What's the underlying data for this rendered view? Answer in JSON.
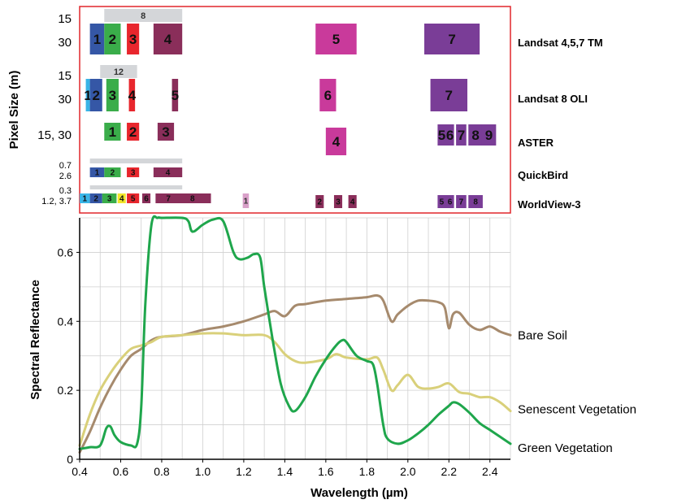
{
  "top_panel": {
    "ylabel": "Pixel Size (m)",
    "border_color": "#e0262b",
    "sensors": [
      {
        "name": "Landsat 4,5,7 TM",
        "pixel_labels": [
          "15",
          "30"
        ],
        "bands": [
          {
            "label": "8",
            "from": 0.52,
            "to": 0.9,
            "tier": "pan",
            "color": "#d4d6d9"
          },
          {
            "label": "1",
            "from": 0.45,
            "to": 0.52,
            "tier": "ms",
            "color": "#3557a6"
          },
          {
            "label": "2",
            "from": 0.52,
            "to": 0.6,
            "tier": "ms",
            "color": "#3aad4a"
          },
          {
            "label": "3",
            "from": 0.63,
            "to": 0.69,
            "tier": "ms",
            "color": "#e8262d"
          },
          {
            "label": "4",
            "from": 0.76,
            "to": 0.9,
            "tier": "ms",
            "color": "#8a2e5a"
          },
          {
            "label": "5",
            "from": 1.55,
            "to": 1.75,
            "tier": "ms",
            "color": "#c93a9b"
          },
          {
            "label": "7",
            "from": 2.08,
            "to": 2.35,
            "tier": "ms",
            "color": "#7a3d97"
          }
        ]
      },
      {
        "name": "Landsat 8 OLI",
        "pixel_labels": [
          "15",
          "30"
        ],
        "bands": [
          {
            "label": "12",
            "from": 0.5,
            "to": 0.68,
            "tier": "pan",
            "color": "#d4d6d9"
          },
          {
            "label": "1",
            "from": 0.43,
            "to": 0.45,
            "tier": "ms",
            "color": "#39b4e6"
          },
          {
            "label": "2",
            "from": 0.45,
            "to": 0.51,
            "tier": "ms",
            "color": "#3557a6"
          },
          {
            "label": "3",
            "from": 0.53,
            "to": 0.59,
            "tier": "ms",
            "color": "#3aad4a"
          },
          {
            "label": "4",
            "from": 0.64,
            "to": 0.67,
            "tier": "ms",
            "color": "#e8262d"
          },
          {
            "label": "5",
            "from": 0.85,
            "to": 0.88,
            "tier": "ms",
            "color": "#8a2e5a"
          },
          {
            "label": "6",
            "from": 1.57,
            "to": 1.65,
            "tier": "ms",
            "color": "#c93a9b"
          },
          {
            "label": "7",
            "from": 2.11,
            "to": 2.29,
            "tier": "ms",
            "color": "#7a3d97"
          }
        ]
      },
      {
        "name": "ASTER",
        "pixel_labels": [
          "15, 30"
        ],
        "bands": [
          {
            "label": "1",
            "from": 0.52,
            "to": 0.6,
            "tier": "ms",
            "color": "#3aad4a"
          },
          {
            "label": "2",
            "from": 0.63,
            "to": 0.69,
            "tier": "ms",
            "color": "#e8262d"
          },
          {
            "label": "3",
            "from": 0.78,
            "to": 0.86,
            "tier": "ms",
            "color": "#8a2e5a"
          },
          {
            "label": "4",
            "from": 1.6,
            "to": 1.7,
            "tier": "ms",
            "color": "#c93a9b"
          },
          {
            "label": "5",
            "from": 2.145,
            "to": 2.185,
            "tier": "ms",
            "color": "#7a3d97"
          },
          {
            "label": "6",
            "from": 2.185,
            "to": 2.225,
            "tier": "ms",
            "color": "#7a3d97"
          },
          {
            "label": "7",
            "from": 2.235,
            "to": 2.285,
            "tier": "ms",
            "color": "#7a3d97"
          },
          {
            "label": "8",
            "from": 2.295,
            "to": 2.365,
            "tier": "ms",
            "color": "#7a3d97"
          },
          {
            "label": "9",
            "from": 2.36,
            "to": 2.43,
            "tier": "ms",
            "color": "#7a3d97"
          }
        ]
      },
      {
        "name": "QuickBird",
        "pixel_labels": [
          "0.7",
          "2.6"
        ],
        "bands": [
          {
            "label": "",
            "from": 0.45,
            "to": 0.9,
            "tier": "pan",
            "color": "#d4d6d9"
          },
          {
            "label": "1",
            "from": 0.45,
            "to": 0.52,
            "tier": "ms",
            "color": "#3557a6"
          },
          {
            "label": "2",
            "from": 0.52,
            "to": 0.6,
            "tier": "ms",
            "color": "#3aad4a"
          },
          {
            "label": "3",
            "from": 0.63,
            "to": 0.69,
            "tier": "ms",
            "color": "#e8262d"
          },
          {
            "label": "4",
            "from": 0.76,
            "to": 0.9,
            "tier": "ms",
            "color": "#8a2e5a"
          }
        ]
      },
      {
        "name": "WorldView-3",
        "pixel_labels": [
          "0.3",
          "1.2, 3.7"
        ],
        "bands": [
          {
            "label": "",
            "from": 0.45,
            "to": 0.9,
            "tier": "pan",
            "color": "#d4d6d9"
          },
          {
            "label": "1",
            "from": 0.4,
            "to": 0.45,
            "tier": "ms",
            "color": "#39b4e6"
          },
          {
            "label": "2",
            "from": 0.45,
            "to": 0.51,
            "tier": "ms",
            "color": "#3557a6"
          },
          {
            "label": "3",
            "from": 0.51,
            "to": 0.58,
            "tier": "ms",
            "color": "#3aad4a"
          },
          {
            "label": "4",
            "from": 0.585,
            "to": 0.625,
            "tier": "ms",
            "color": "#f2e52a"
          },
          {
            "label": "5",
            "from": 0.63,
            "to": 0.69,
            "tier": "ms",
            "color": "#e8262d"
          },
          {
            "label": "6",
            "from": 0.705,
            "to": 0.745,
            "tier": "ms",
            "color": "#8a2e5a"
          },
          {
            "label": "7",
            "from": 0.77,
            "to": 0.895,
            "tier": "ms",
            "color": "#8a2e5a"
          },
          {
            "label": "8",
            "from": 0.86,
            "to": 1.04,
            "tier": "ms",
            "color": "#8a2e5a"
          },
          {
            "label": "1",
            "from": 1.195,
            "to": 1.225,
            "tier": "ms",
            "color": "#d9a0c9"
          },
          {
            "label": "2",
            "from": 1.55,
            "to": 1.59,
            "tier": "ms",
            "color": "#8a2e5a"
          },
          {
            "label": "3",
            "from": 1.64,
            "to": 1.68,
            "tier": "ms",
            "color": "#8a2e5a"
          },
          {
            "label": "4",
            "from": 1.71,
            "to": 1.75,
            "tier": "ms",
            "color": "#8a2e5a"
          },
          {
            "label": "5",
            "from": 2.145,
            "to": 2.185,
            "tier": "ms",
            "color": "#7a3d97"
          },
          {
            "label": "6",
            "from": 2.185,
            "to": 2.225,
            "tier": "ms",
            "color": "#7a3d97"
          },
          {
            "label": "7",
            "from": 2.235,
            "to": 2.285,
            "tier": "ms",
            "color": "#7a3d97"
          },
          {
            "label": "8",
            "from": 2.295,
            "to": 2.365,
            "tier": "ms",
            "color": "#7a3d97"
          }
        ]
      }
    ]
  },
  "chart_data": {
    "type": "line",
    "title": "",
    "xlabel": "Wavelength (µm)",
    "ylabel": "Spectral Reflectance",
    "xlim": [
      0.4,
      2.5
    ],
    "ylim": [
      0,
      0.7
    ],
    "xticks": [
      "0.4",
      "0.6",
      "0.8",
      "1.0",
      "1.2",
      "1.4",
      "1.6",
      "1.8",
      "2.0",
      "2.2",
      "2.4"
    ],
    "yticks": [
      "0",
      "0.2",
      "0.4",
      "0.6"
    ],
    "grid": true,
    "series": [
      {
        "name": "Bare Soil",
        "color": "#a68a6d",
        "x": [
          0.4,
          0.45,
          0.5,
          0.55,
          0.6,
          0.65,
          0.7,
          0.75,
          0.8,
          0.9,
          1.0,
          1.1,
          1.2,
          1.3,
          1.35,
          1.4,
          1.45,
          1.5,
          1.6,
          1.7,
          1.8,
          1.85,
          1.88,
          1.92,
          1.95,
          2.0,
          2.05,
          2.1,
          2.15,
          2.18,
          2.2,
          2.22,
          2.25,
          2.3,
          2.35,
          2.4,
          2.45,
          2.5
        ],
        "y": [
          0.02,
          0.08,
          0.15,
          0.21,
          0.26,
          0.3,
          0.32,
          0.345,
          0.355,
          0.36,
          0.375,
          0.385,
          0.4,
          0.42,
          0.43,
          0.415,
          0.445,
          0.45,
          0.46,
          0.465,
          0.47,
          0.475,
          0.46,
          0.4,
          0.42,
          0.445,
          0.46,
          0.46,
          0.455,
          0.44,
          0.38,
          0.42,
          0.425,
          0.39,
          0.375,
          0.385,
          0.37,
          0.36
        ]
      },
      {
        "name": "Senescent Vegetation",
        "color": "#d9d07a",
        "x": [
          0.4,
          0.45,
          0.5,
          0.55,
          0.6,
          0.65,
          0.7,
          0.75,
          0.8,
          0.9,
          1.0,
          1.1,
          1.2,
          1.3,
          1.35,
          1.4,
          1.45,
          1.5,
          1.6,
          1.65,
          1.7,
          1.8,
          1.85,
          1.88,
          1.92,
          1.95,
          2.0,
          2.05,
          2.1,
          2.15,
          2.2,
          2.25,
          2.3,
          2.35,
          2.4,
          2.45,
          2.5
        ],
        "y": [
          0.04,
          0.13,
          0.2,
          0.25,
          0.29,
          0.32,
          0.33,
          0.34,
          0.355,
          0.36,
          0.365,
          0.365,
          0.36,
          0.36,
          0.34,
          0.305,
          0.285,
          0.28,
          0.29,
          0.305,
          0.295,
          0.29,
          0.295,
          0.26,
          0.2,
          0.215,
          0.245,
          0.21,
          0.205,
          0.21,
          0.22,
          0.195,
          0.19,
          0.18,
          0.18,
          0.165,
          0.14
        ]
      },
      {
        "name": "Green Vegetation",
        "color": "#1fa64c",
        "x": [
          0.4,
          0.45,
          0.5,
          0.53,
          0.55,
          0.57,
          0.6,
          0.65,
          0.68,
          0.7,
          0.72,
          0.75,
          0.78,
          0.8,
          0.9,
          0.93,
          0.95,
          1.0,
          1.05,
          1.1,
          1.15,
          1.18,
          1.22,
          1.25,
          1.28,
          1.3,
          1.34,
          1.38,
          1.42,
          1.45,
          1.5,
          1.55,
          1.6,
          1.65,
          1.68,
          1.7,
          1.75,
          1.8,
          1.83,
          1.85,
          1.88,
          1.9,
          1.95,
          2.0,
          2.05,
          2.1,
          2.15,
          2.2,
          2.22,
          2.25,
          2.3,
          2.35,
          2.4,
          2.45,
          2.5
        ],
        "y": [
          0.03,
          0.035,
          0.04,
          0.09,
          0.095,
          0.07,
          0.05,
          0.04,
          0.045,
          0.15,
          0.45,
          0.68,
          0.7,
          0.7,
          0.7,
          0.69,
          0.66,
          0.68,
          0.695,
          0.69,
          0.6,
          0.58,
          0.585,
          0.595,
          0.585,
          0.5,
          0.35,
          0.22,
          0.155,
          0.14,
          0.18,
          0.24,
          0.29,
          0.33,
          0.345,
          0.34,
          0.3,
          0.285,
          0.275,
          0.22,
          0.1,
          0.06,
          0.045,
          0.055,
          0.075,
          0.1,
          0.13,
          0.155,
          0.165,
          0.16,
          0.135,
          0.105,
          0.085,
          0.065,
          0.045
        ]
      }
    ]
  }
}
